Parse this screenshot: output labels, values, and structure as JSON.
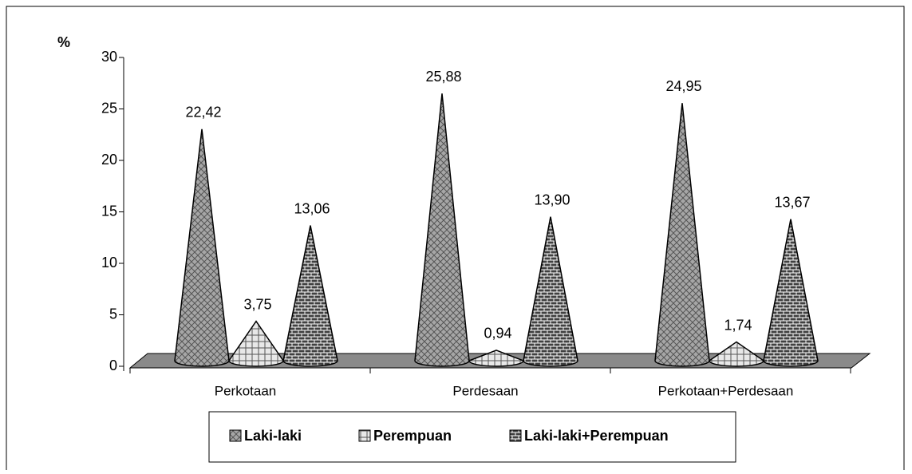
{
  "chart_data": {
    "type": "cone",
    "y_label": "%",
    "categories": [
      "Perkotaan",
      "Perdesaan",
      "Perkotaan+Perdesaan"
    ],
    "series": [
      {
        "name": "Laki-laki",
        "color": "#a6a6a6",
        "values": [
          22.42,
          25.88,
          24.95
        ],
        "value_labels": [
          "22,42",
          "25,88",
          "24,95"
        ]
      },
      {
        "name": "Perempuan",
        "color": "#e8e8e8",
        "values": [
          3.75,
          0.94,
          1.74
        ],
        "value_labels": [
          "3,75",
          "0,94",
          "1,74"
        ]
      },
      {
        "name": "Laki-laki+Perempuan",
        "color": "#404040",
        "values": [
          13.06,
          13.9,
          13.67
        ],
        "value_labels": [
          "13,06",
          "13,90",
          "13,67"
        ]
      }
    ],
    "ylim": [
      0,
      30
    ],
    "yticks": [
      0,
      5,
      10,
      15,
      20,
      25,
      30
    ],
    "legend": "bottom"
  }
}
